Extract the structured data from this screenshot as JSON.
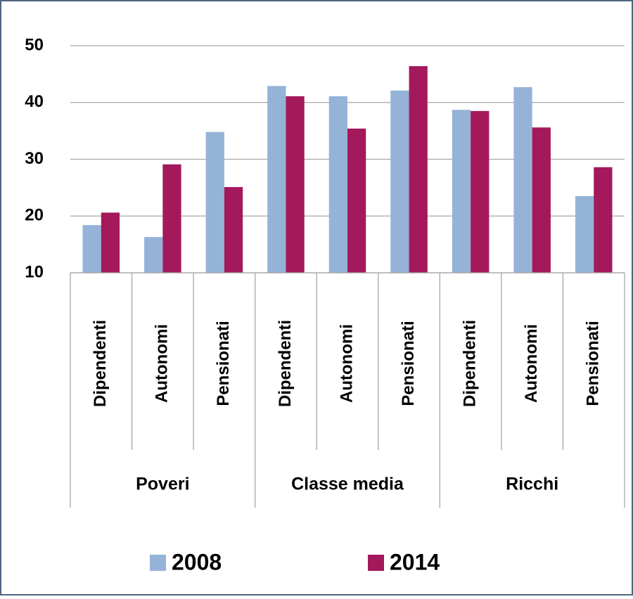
{
  "chart_data": {
    "type": "bar",
    "categories": [
      "Dipendenti",
      "Autonomi",
      "Pensionati",
      "Dipendenti",
      "Autonomi",
      "Pensionati",
      "Dipendenti",
      "Autonomi",
      "Pensionati"
    ],
    "category_groups": [
      "Poveri",
      "Classe media",
      "Ricchi"
    ],
    "series": [
      {
        "name": "2008",
        "color": "#95b3d7",
        "values": [
          18.4,
          16.3,
          34.8,
          42.9,
          41.1,
          42.1,
          38.7,
          42.7,
          23.5
        ]
      },
      {
        "name": "2014",
        "color": "#a3195b",
        "values": [
          20.6,
          29.1,
          25.1,
          41.1,
          35.4,
          46.4,
          38.5,
          35.6,
          28.6
        ]
      }
    ],
    "ylim": [
      10,
      50
    ],
    "yticks": [
      10,
      20,
      30,
      40,
      50
    ],
    "grid": true,
    "legend": "bottom"
  }
}
